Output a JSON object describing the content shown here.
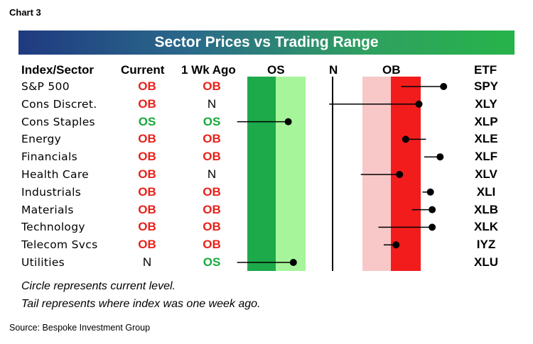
{
  "chart_label": "Chart 3",
  "title": "Sector Prices vs Trading Range",
  "headers": {
    "sector": "Index/Sector",
    "current": "Current",
    "week_ago": "1 Wk Ago",
    "os": "OS",
    "n": "N",
    "ob": "OB",
    "etf": "ETF"
  },
  "colors": {
    "ob": "#e8211a",
    "os": "#19a93a",
    "n": "#000000",
    "dark_green_zone": "#1daa4a",
    "light_green_zone": "#a6f59a",
    "light_red_zone": "#f8c8c8",
    "red_zone": "#f21c1c"
  },
  "chart_data": {
    "type": "scatter",
    "x_scale": {
      "os_edge": -100,
      "neutral": 0,
      "ob_edge": 100
    },
    "rows": [
      {
        "sector": "S&P 500",
        "current": "OB",
        "week_ago": "OB",
        "etf": "SPY",
        "now": 126,
        "prior": 78
      },
      {
        "sector": "Cons Discret.",
        "current": "OB",
        "week_ago": "N",
        "etf": "XLY",
        "now": 98,
        "prior": -4
      },
      {
        "sector": "Cons Staples",
        "current": "OS",
        "week_ago": "OS",
        "etf": "XLP",
        "now": -52,
        "prior": -112
      },
      {
        "sector": "Energy",
        "current": "OB",
        "week_ago": "OB",
        "etf": "XLE",
        "now": 83,
        "prior": 106
      },
      {
        "sector": "Financials",
        "current": "OB",
        "week_ago": "OB",
        "etf": "XLF",
        "now": 122,
        "prior": 104
      },
      {
        "sector": "Health Care",
        "current": "OB",
        "week_ago": "N",
        "etf": "XLV",
        "now": 76,
        "prior": 32
      },
      {
        "sector": "Industrials",
        "current": "OB",
        "week_ago": "OB",
        "etf": "XLI",
        "now": 111,
        "prior": 102
      },
      {
        "sector": "Materials",
        "current": "OB",
        "week_ago": "OB",
        "etf": "XLB",
        "now": 113,
        "prior": 90
      },
      {
        "sector": "Technology",
        "current": "OB",
        "week_ago": "OB",
        "etf": "XLK",
        "now": 113,
        "prior": 52
      },
      {
        "sector": "Telecom Svcs",
        "current": "OB",
        "week_ago": "OB",
        "etf": "IYZ",
        "now": 72,
        "prior": 58
      },
      {
        "sector": "Utilities",
        "current": "N",
        "week_ago": "OS",
        "etf": "XLU",
        "now": -46,
        "prior": -112
      }
    ]
  },
  "notes": [
    "Circle represents current level.",
    "Tail represents where index was one week ago."
  ],
  "source": "Source: Bespoke Investment Group"
}
